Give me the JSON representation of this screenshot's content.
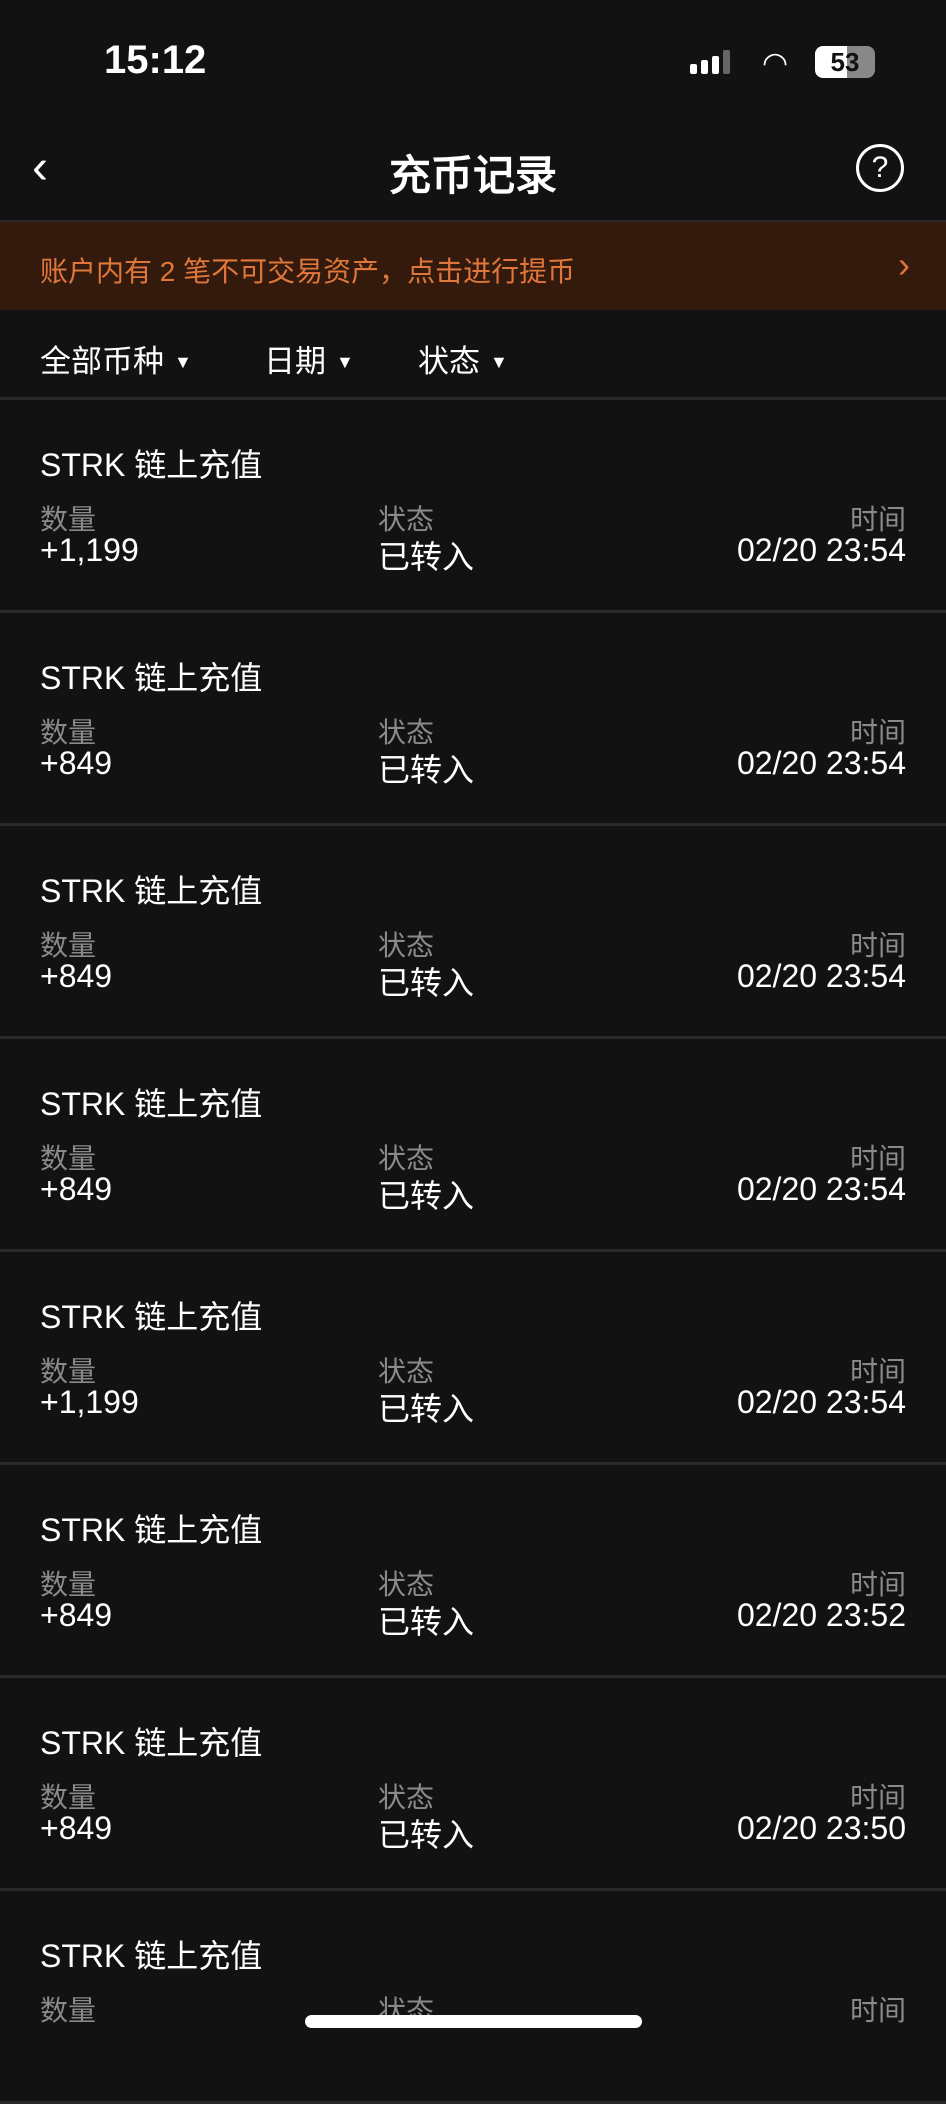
{
  "status_bar": {
    "time": "15:12",
    "battery": "53",
    "battery_level": 53
  },
  "header": {
    "title": "充币记录",
    "back_icon": "chevron-left-icon",
    "help_icon": "question-circle-icon"
  },
  "banner": {
    "text": "账户内有 2 笔不可交易资产，点击进行提币",
    "arrow": "›",
    "color": "#e0773a"
  },
  "filters": [
    {
      "label": "全部币种"
    },
    {
      "label": "日期"
    },
    {
      "label": "状态"
    }
  ],
  "labels": {
    "amount": "数量",
    "status": "状态",
    "time": "时间"
  },
  "records": [
    {
      "title": "STRK 链上充值",
      "amount": "+1,199",
      "status": "已转入",
      "time": "02/20 23:54"
    },
    {
      "title": "STRK 链上充值",
      "amount": "+849",
      "status": "已转入",
      "time": "02/20 23:54"
    },
    {
      "title": "STRK 链上充值",
      "amount": "+849",
      "status": "已转入",
      "time": "02/20 23:54"
    },
    {
      "title": "STRK 链上充值",
      "amount": "+849",
      "status": "已转入",
      "time": "02/20 23:54"
    },
    {
      "title": "STRK 链上充值",
      "amount": "+1,199",
      "status": "已转入",
      "time": "02/20 23:54"
    },
    {
      "title": "STRK 链上充值",
      "amount": "+849",
      "status": "已转入",
      "time": "02/20 23:52"
    },
    {
      "title": "STRK 链上充值",
      "amount": "+849",
      "status": "已转入",
      "time": "02/20 23:50"
    },
    {
      "title": "STRK 链上充值"
    }
  ]
}
